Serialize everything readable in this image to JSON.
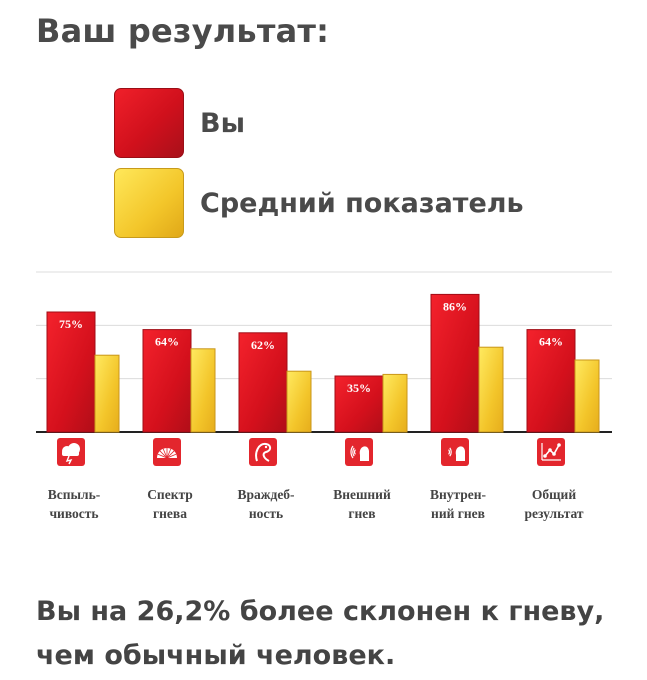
{
  "title": "Ваш результат:",
  "legend": {
    "you": "Вы",
    "average": "Средний показатель"
  },
  "colors": {
    "you": "#d8121e",
    "average": "#f5cc30",
    "icon_bg": "#e3262d"
  },
  "chart_data": {
    "type": "bar",
    "categories": [
      [
        "Вспыль-",
        "чивость"
      ],
      [
        "Спектр",
        "гнева"
      ],
      [
        "Враждеб-",
        "ность"
      ],
      [
        "Внешний",
        "гнев"
      ],
      [
        "Внутрен-",
        "ний гнев"
      ],
      [
        "Общий",
        "результат"
      ]
    ],
    "icons": [
      "storm-cloud-icon",
      "gauge-icon",
      "dragon-icon",
      "shouting-head-icon",
      "inner-voice-head-icon",
      "line-chart-icon"
    ],
    "series": [
      {
        "name": "Вы",
        "values": [
          75,
          64,
          62,
          35,
          86,
          64
        ],
        "labels": [
          "75%",
          "64%",
          "62%",
          "35%",
          "86%",
          "64%"
        ]
      },
      {
        "name": "Средний показатель",
        "values": [
          48,
          52,
          38,
          36,
          53,
          45
        ]
      }
    ],
    "ylim": [
      0,
      100
    ],
    "grid": true
  },
  "conclusion": "Вы на 26,2% более склонен к гневу, чем обычный человек."
}
